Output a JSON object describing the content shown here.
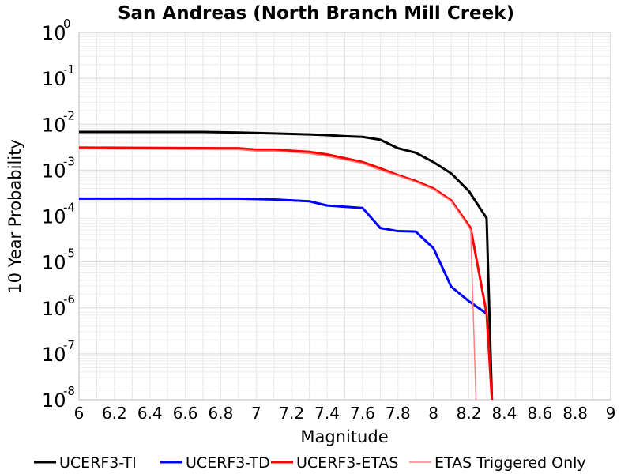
{
  "chart_data": {
    "type": "line",
    "title": "San Andreas (North Branch Mill Creek)",
    "xlabel": "Magnitude",
    "ylabel": "10 Year Probability",
    "xlim": [
      6,
      9
    ],
    "ylim": [
      1e-08,
      1
    ],
    "yscale": "log",
    "grid": true,
    "legend_position": "bottom",
    "x_ticks": [
      "6",
      "6.2",
      "6.4",
      "6.6",
      "6.8",
      "7",
      "7.2",
      "7.4",
      "7.6",
      "7.8",
      "8",
      "8.2",
      "8.4",
      "8.6",
      "8.8",
      "9"
    ],
    "y_ticks": [
      {
        "base": "10",
        "exp": "0"
      },
      {
        "base": "10",
        "exp": "-1"
      },
      {
        "base": "10",
        "exp": "-2"
      },
      {
        "base": "10",
        "exp": "-3"
      },
      {
        "base": "10",
        "exp": "-4"
      },
      {
        "base": "10",
        "exp": "-5"
      },
      {
        "base": "10",
        "exp": "-6"
      },
      {
        "base": "10",
        "exp": "-7"
      },
      {
        "base": "10",
        "exp": "-8"
      }
    ],
    "series": [
      {
        "name": "UCERF3-TI",
        "color": "#000000",
        "width": 3,
        "points": [
          [
            6.0,
            0.0068
          ],
          [
            6.7,
            0.0068
          ],
          [
            6.9,
            0.0066
          ],
          [
            7.1,
            0.0063
          ],
          [
            7.3,
            0.006
          ],
          [
            7.4,
            0.0058
          ],
          [
            7.5,
            0.0055
          ],
          [
            7.6,
            0.0053
          ],
          [
            7.7,
            0.0046
          ],
          [
            7.8,
            0.003
          ],
          [
            7.9,
            0.0024
          ],
          [
            8.0,
            0.0015
          ],
          [
            8.1,
            0.00085
          ],
          [
            8.2,
            0.00035
          ],
          [
            8.3,
            9e-05
          ],
          [
            8.33,
            1e-08
          ]
        ]
      },
      {
        "name": "UCERF3-TD",
        "color": "#0000ff",
        "width": 3,
        "points": [
          [
            6.0,
            0.00024
          ],
          [
            6.9,
            0.00024
          ],
          [
            7.1,
            0.00023
          ],
          [
            7.3,
            0.00021
          ],
          [
            7.4,
            0.00017
          ],
          [
            7.6,
            0.00015
          ],
          [
            7.7,
            5.5e-05
          ],
          [
            7.8,
            4.7e-05
          ],
          [
            7.9,
            4.6e-05
          ],
          [
            8.0,
            2e-05
          ],
          [
            8.1,
            2.9e-06
          ],
          [
            8.2,
            1.4e-06
          ],
          [
            8.3,
            7.5e-07
          ]
        ]
      },
      {
        "name": "UCERF3-ETAS",
        "color": "#ff0000",
        "width": 3,
        "points": [
          [
            6.0,
            0.0031
          ],
          [
            6.8,
            0.003
          ],
          [
            6.9,
            0.003
          ],
          [
            7.0,
            0.0028
          ],
          [
            7.1,
            0.0028
          ],
          [
            7.3,
            0.0025
          ],
          [
            7.4,
            0.0022
          ],
          [
            7.6,
            0.0015
          ],
          [
            7.7,
            0.0011
          ],
          [
            7.8,
            0.00078
          ],
          [
            7.9,
            0.00058
          ],
          [
            8.0,
            0.0004
          ],
          [
            8.1,
            0.00022
          ],
          [
            8.21,
            5.5e-05
          ],
          [
            8.3,
            7.5e-07
          ],
          [
            8.33,
            1e-08
          ]
        ]
      },
      {
        "name": "ETAS Triggered Only",
        "color": "#ff8080",
        "width": 1.5,
        "points": [
          [
            6.0,
            0.0029
          ],
          [
            6.8,
            0.0028
          ],
          [
            6.9,
            0.0028
          ],
          [
            7.0,
            0.0026
          ],
          [
            7.1,
            0.0026
          ],
          [
            7.3,
            0.0023
          ],
          [
            7.4,
            0.002
          ],
          [
            7.6,
            0.0014
          ],
          [
            7.7,
            0.001
          ],
          [
            7.8,
            0.00075
          ],
          [
            7.9,
            0.00055
          ],
          [
            8.0,
            0.00038
          ],
          [
            8.1,
            0.00021
          ],
          [
            8.21,
            5e-05
          ],
          [
            8.24,
            1e-08
          ]
        ]
      }
    ]
  }
}
